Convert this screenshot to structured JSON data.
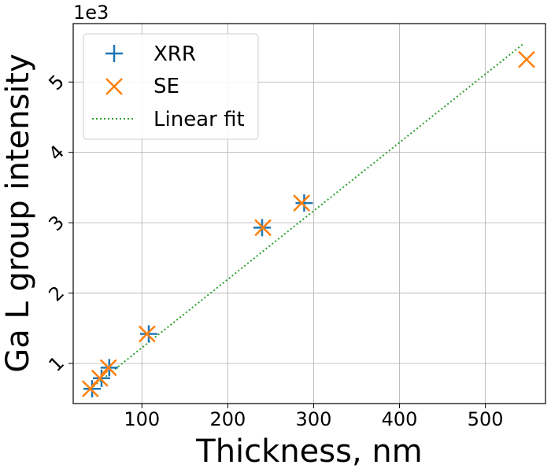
{
  "chart_data": {
    "type": "scatter",
    "xlabel": "Thickness, nm",
    "ylabel": "Ga L group intensity",
    "y_multiplier_label": "1e3",
    "xlim": [
      20,
      570
    ],
    "ylim": [
      0.43,
      5.83
    ],
    "x_ticks": [
      100,
      200,
      300,
      400,
      500
    ],
    "y_ticks": [
      1,
      2,
      3,
      4,
      5
    ],
    "grid": true,
    "legend_position": "top-left",
    "series": [
      {
        "name": "XRR",
        "marker": "plus",
        "color": "#1f77b4",
        "points": [
          [
            42,
            0.64
          ],
          [
            53,
            0.79
          ],
          [
            62,
            0.94
          ],
          [
            108,
            1.42
          ],
          [
            240,
            2.93
          ],
          [
            289,
            3.28
          ]
        ]
      },
      {
        "name": "SE",
        "marker": "x",
        "color": "#ff7f0e",
        "points": [
          [
            40,
            0.64
          ],
          [
            51,
            0.79
          ],
          [
            61,
            0.94
          ],
          [
            106,
            1.42
          ],
          [
            241,
            2.93
          ],
          [
            286,
            3.28
          ],
          [
            548,
            5.32
          ]
        ]
      },
      {
        "name": "Linear fit",
        "style": "dotted-line",
        "color": "#2ca02c",
        "points": [
          [
            40,
            0.64
          ],
          [
            545,
            5.55
          ]
        ]
      }
    ]
  }
}
